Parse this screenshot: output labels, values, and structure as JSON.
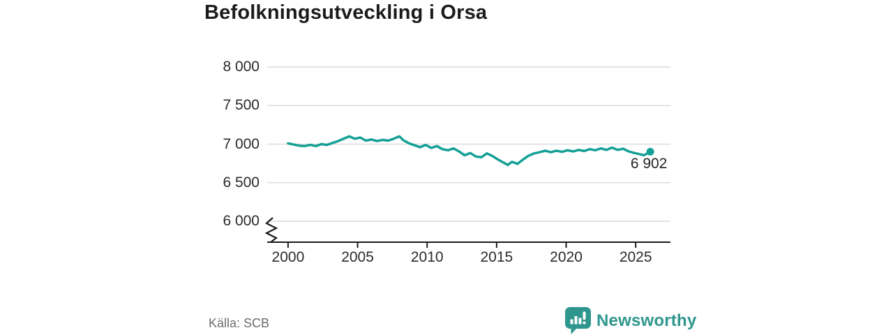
{
  "title": "Befolkningsutveckling i Orsa",
  "source": "Källa: SCB",
  "branding": {
    "name": "Newsworthy",
    "icon": "bar-chart-speech-bubble-icon"
  },
  "colors": {
    "line": "#14a096",
    "grid": "#dcdcdc",
    "axis": "#1a1a1a",
    "text": "#2b2b2b",
    "brand": "#2f968d",
    "muted": "#6d6d6d"
  },
  "chart_data": {
    "type": "line",
    "title": "Befolkningsutveckling i Orsa",
    "xlabel": "",
    "ylabel": "",
    "grid": "horizontal",
    "axis_break_bottom_left": true,
    "legend": "none",
    "xlim": [
      1998.5,
      2027.5
    ],
    "ylim": [
      6000,
      8000
    ],
    "y_ticks": [
      "8 000",
      "7 500",
      "7 000",
      "6 500",
      "6 000"
    ],
    "y_tick_values": [
      8000,
      7500,
      7000,
      6500,
      6000
    ],
    "x_ticks": [
      "2000",
      "2005",
      "2010",
      "2015",
      "2020",
      "2025"
    ],
    "x_tick_values": [
      2000,
      2005,
      2010,
      2015,
      2020,
      2025
    ],
    "end_label": "6 902",
    "end_value": 6902,
    "x": [
      2000.0,
      2000.4,
      2000.8,
      2001.2,
      2001.6,
      2002.0,
      2002.4,
      2002.8,
      2003.2,
      2003.6,
      2004.0,
      2004.4,
      2004.8,
      2005.2,
      2005.6,
      2006.0,
      2006.4,
      2006.8,
      2007.2,
      2007.6,
      2008.0,
      2008.3,
      2008.7,
      2009.1,
      2009.5,
      2009.9,
      2010.3,
      2010.7,
      2011.1,
      2011.5,
      2011.9,
      2012.3,
      2012.7,
      2013.1,
      2013.5,
      2013.9,
      2014.3,
      2014.7,
      2015.1,
      2015.5,
      2015.8,
      2016.1,
      2016.5,
      2016.9,
      2017.3,
      2017.7,
      2018.1,
      2018.5,
      2018.9,
      2019.3,
      2019.7,
      2020.1,
      2020.5,
      2020.9,
      2021.3,
      2021.7,
      2022.1,
      2022.5,
      2022.9,
      2023.3,
      2023.7,
      2024.1,
      2024.5,
      2024.9,
      2025.3,
      2025.6,
      2026.05
    ],
    "values": [
      7010,
      6995,
      6980,
      6975,
      6990,
      6975,
      7000,
      6990,
      7015,
      7040,
      7070,
      7100,
      7070,
      7085,
      7045,
      7060,
      7040,
      7055,
      7045,
      7070,
      7100,
      7050,
      7010,
      6985,
      6960,
      6990,
      6950,
      6975,
      6935,
      6920,
      6945,
      6905,
      6855,
      6885,
      6840,
      6830,
      6880,
      6845,
      6800,
      6760,
      6730,
      6770,
      6745,
      6800,
      6850,
      6880,
      6895,
      6915,
      6895,
      6915,
      6900,
      6920,
      6905,
      6925,
      6910,
      6935,
      6920,
      6945,
      6925,
      6955,
      6925,
      6940,
      6905,
      6885,
      6870,
      6855,
      6902
    ]
  }
}
